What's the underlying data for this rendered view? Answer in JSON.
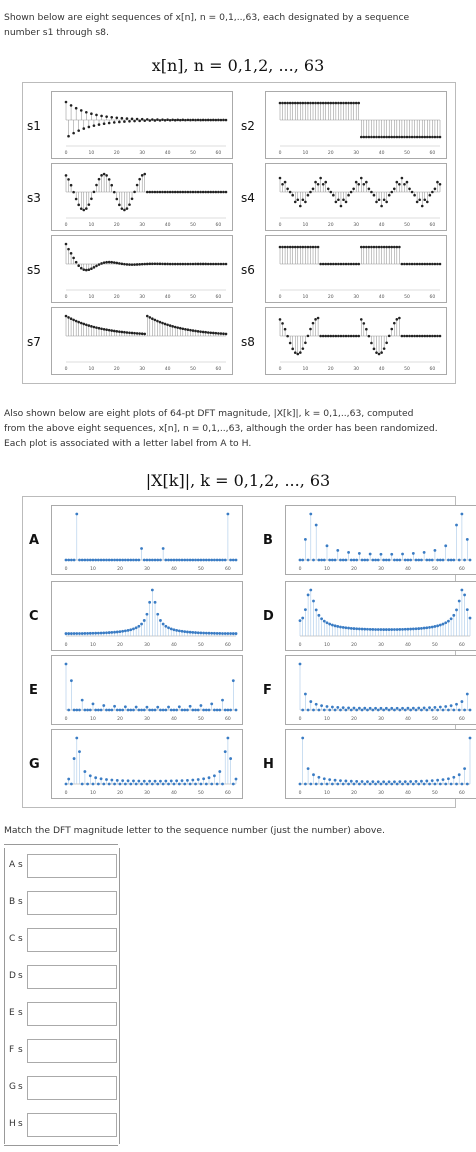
{
  "intro": {
    "line1": "Shown below are eight sequences of x[n], n = 0,1,..,63, each designated by a sequence",
    "line2": "number s1 through s8."
  },
  "top_title": "x[n], n = 0,1,2, ..., 63",
  "sequences": [
    {
      "label": "s1"
    },
    {
      "label": "s2"
    },
    {
      "label": "s3"
    },
    {
      "label": "s4"
    },
    {
      "label": "s5"
    },
    {
      "label": "s6"
    },
    {
      "label": "s7"
    },
    {
      "label": "s8"
    }
  ],
  "seq_ticks": [
    "0",
    "10",
    "20",
    "30",
    "40",
    "50",
    "60"
  ],
  "middle": {
    "line1": "Also shown below are eight plots of 64-pt DFT magnitude, |X[k]|, k = 0,1,..,63, computed",
    "line2": "from the above eight sequences, x[n], n = 0,1,..,63, although the order has been randomized.",
    "line3": "Each plot is associated with a letter label from A to H."
  },
  "bottom_title": "|X[k]|, k = 0,1,2, ..., 63",
  "dfts": [
    {
      "label": "A"
    },
    {
      "label": "B"
    },
    {
      "label": "C"
    },
    {
      "label": "D"
    },
    {
      "label": "E"
    },
    {
      "label": "F"
    },
    {
      "label": "G"
    },
    {
      "label": "H"
    }
  ],
  "instruction": "Match the DFT magnitude letter to the sequence number (just the number) above.",
  "answers": [
    {
      "letter": "A",
      "prefix": "s",
      "value": ""
    },
    {
      "letter": "B",
      "prefix": "s",
      "value": ""
    },
    {
      "letter": "C",
      "prefix": "s",
      "value": ""
    },
    {
      "letter": "D",
      "prefix": "s",
      "value": ""
    },
    {
      "letter": "E",
      "prefix": "s",
      "value": ""
    },
    {
      "letter": "F",
      "prefix": "s",
      "value": ""
    },
    {
      "letter": "G",
      "prefix": "s",
      "value": ""
    },
    {
      "letter": "H",
      "prefix": "s",
      "value": ""
    }
  ],
  "colors": {
    "seq_stem": "#888888",
    "seq_dot": "#222222",
    "dft_stem": "#a8c8e8",
    "dft_dot": "#3a7cc4"
  }
}
